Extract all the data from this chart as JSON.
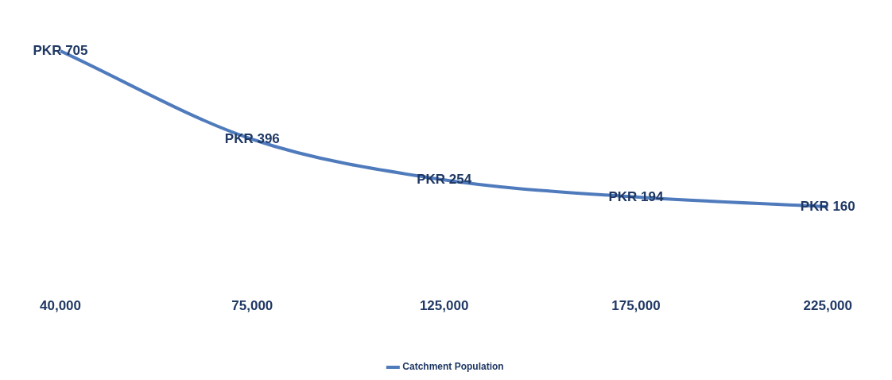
{
  "chart_data": {
    "type": "line",
    "categories": [
      "40,000",
      "75,000",
      "125,000",
      "175,000",
      "225,000"
    ],
    "series": [
      {
        "name": "Catchment Population",
        "color": "#4f7bbd",
        "values": [
          705,
          396,
          254,
          194,
          160
        ],
        "value_labels": [
          "PKR 705",
          "PKR 396",
          "PKR 254",
          "PKR 194",
          "PKR 160"
        ]
      }
    ],
    "legend": "bottom",
    "marker": "none"
  }
}
